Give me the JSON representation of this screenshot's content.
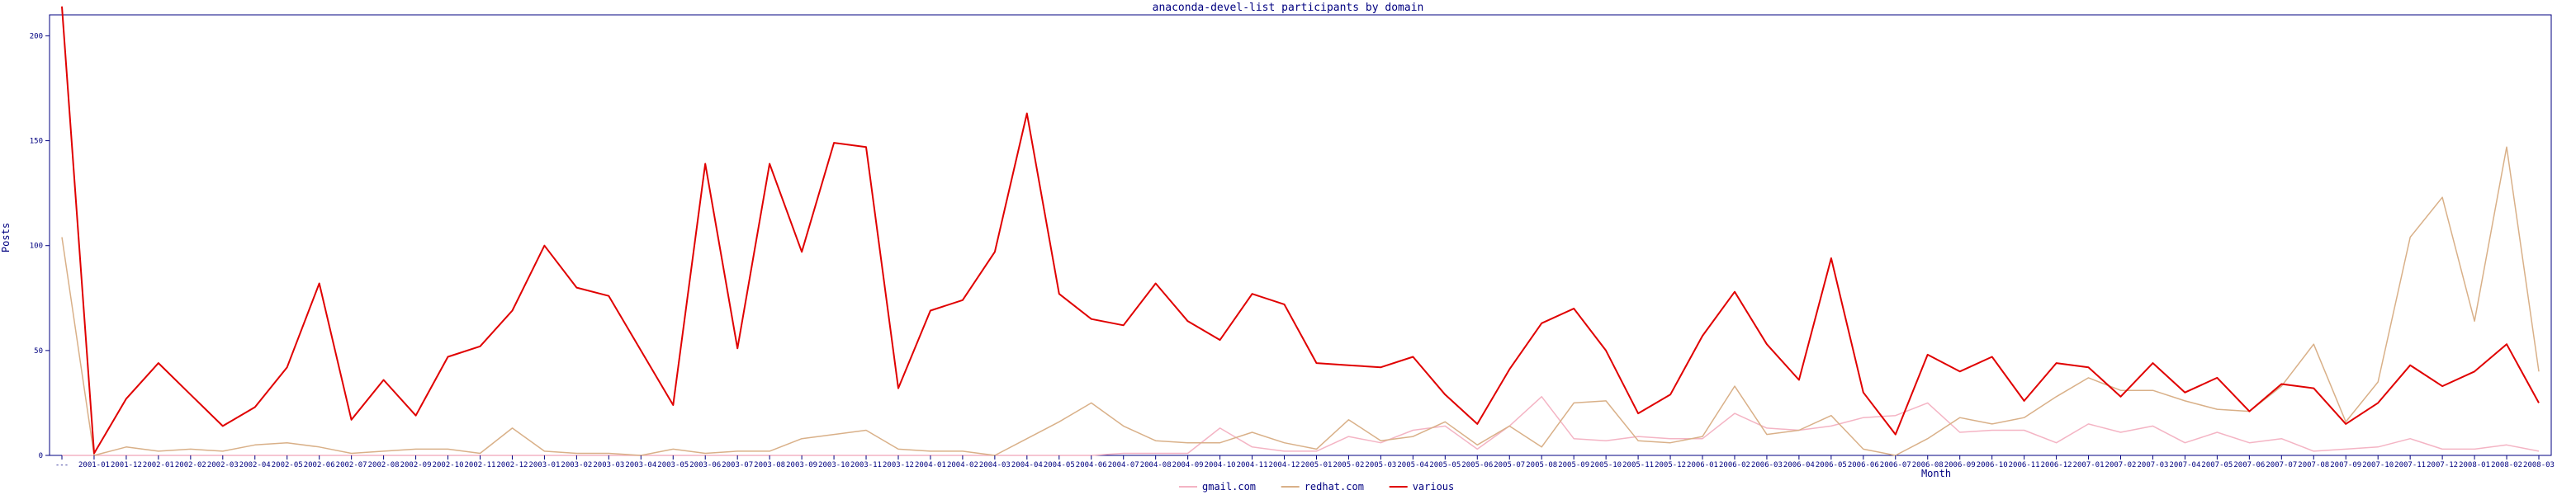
{
  "chart_data": {
    "type": "line",
    "title": "anaconda-devel-list participants by domain",
    "xlabel": "Month",
    "ylabel": "Posts",
    "ylim": [
      0,
      210
    ],
    "yticks": [
      0,
      50,
      100,
      150,
      200
    ],
    "grid": false,
    "legend_position": "bottom-center",
    "categories": [
      "---",
      "2001-01",
      "2001-12",
      "2002-01",
      "2002-02",
      "2002-03",
      "2002-04",
      "2002-05",
      "2002-06",
      "2002-07",
      "2002-08",
      "2002-09",
      "2002-10",
      "2002-11",
      "2002-12",
      "2003-01",
      "2003-02",
      "2003-03",
      "2003-04",
      "2003-05",
      "2003-06",
      "2003-07",
      "2003-08",
      "2003-09",
      "2003-10",
      "2003-11",
      "2003-12",
      "2004-01",
      "2004-02",
      "2004-03",
      "2004-04",
      "2004-05",
      "2004-06",
      "2004-07",
      "2004-08",
      "2004-09",
      "2004-10",
      "2004-11",
      "2004-12",
      "2005-01",
      "2005-02",
      "2005-03",
      "2005-04",
      "2005-05",
      "2005-06",
      "2005-07",
      "2005-08",
      "2005-09",
      "2005-10",
      "2005-11",
      "2005-12",
      "2006-01",
      "2006-02",
      "2006-03",
      "2006-04",
      "2006-05",
      "2006-06",
      "2006-07",
      "2006-08",
      "2006-09",
      "2006-10",
      "2006-11",
      "2006-12",
      "2007-01",
      "2007-02",
      "2007-03",
      "2007-04",
      "2007-05",
      "2007-06",
      "2007-07",
      "2007-08",
      "2007-09",
      "2007-10",
      "2007-11",
      "2007-12",
      "2008-01",
      "2008-02",
      "2008-03"
    ],
    "series": [
      {
        "name": "gmail.com",
        "color": "#f4b4c4",
        "values": [
          0,
          0,
          0,
          0,
          0,
          0,
          0,
          0,
          0,
          0,
          0,
          0,
          0,
          0,
          0,
          0,
          0,
          0,
          0,
          0,
          0,
          0,
          0,
          0,
          0,
          0,
          0,
          0,
          0,
          0,
          0,
          0,
          0,
          1,
          1,
          1,
          13,
          4,
          2,
          2,
          9,
          6,
          12,
          14,
          3,
          14,
          28,
          8,
          7,
          9,
          8,
          8,
          20,
          13,
          12,
          14,
          18,
          19,
          25,
          11,
          12,
          12,
          6,
          15,
          11,
          14,
          6,
          11,
          6,
          8,
          2,
          3,
          4,
          8,
          3,
          3,
          5,
          2
        ]
      },
      {
        "name": "redhat.com",
        "color": "#d9b088",
        "values": [
          104,
          0,
          4,
          2,
          3,
          2,
          5,
          6,
          4,
          1,
          2,
          3,
          3,
          1,
          13,
          2,
          1,
          1,
          0,
          3,
          1,
          2,
          2,
          8,
          10,
          12,
          3,
          2,
          2,
          0,
          8,
          16,
          25,
          14,
          7,
          6,
          6,
          11,
          6,
          3,
          17,
          7,
          9,
          16,
          5,
          14,
          4,
          25,
          26,
          7,
          6,
          9,
          33,
          10,
          12,
          19,
          3,
          0,
          8,
          18,
          15,
          18,
          28,
          37,
          31,
          31,
          26,
          22,
          21,
          33,
          53,
          16,
          35,
          104,
          123,
          64,
          147,
          40
        ]
      },
      {
        "name": "various",
        "color": "#e00000",
        "values": [
          214,
          1,
          27,
          44,
          29,
          14,
          23,
          42,
          82,
          17,
          36,
          19,
          47,
          52,
          69,
          100,
          80,
          76,
          50,
          24,
          139,
          51,
          139,
          97,
          149,
          147,
          32,
          69,
          74,
          97,
          163,
          77,
          65,
          62,
          82,
          64,
          55,
          77,
          72,
          44,
          43,
          42,
          47,
          29,
          15,
          41,
          63,
          70,
          50,
          20,
          29,
          57,
          78,
          53,
          36,
          94,
          30,
          10,
          48,
          40,
          47,
          26,
          44,
          42,
          28,
          44,
          30,
          37,
          21,
          34,
          32,
          15,
          25,
          43,
          33,
          40,
          53,
          25
        ]
      }
    ]
  }
}
